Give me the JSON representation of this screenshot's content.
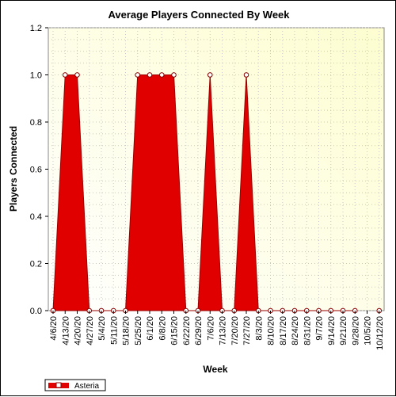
{
  "chart_data": {
    "type": "area",
    "title": "Average Players Connected By Week",
    "xlabel": "Week",
    "ylabel": "Players Connected",
    "ylim": [
      0,
      1.2
    ],
    "yticks": [
      "0.0",
      "0.2",
      "0.4",
      "0.6",
      "0.8",
      "1.0",
      "1.2"
    ],
    "categories": [
      "4/6/20",
      "4/13/20",
      "4/20/20",
      "4/27/20",
      "5/4/20",
      "5/11/20",
      "5/18/20",
      "5/25/20",
      "6/1/20",
      "6/8/20",
      "6/15/20",
      "6/22/20",
      "6/29/20",
      "7/6/20",
      "7/13/20",
      "7/20/20",
      "7/27/20",
      "8/3/20",
      "8/10/20",
      "8/17/20",
      "8/24/20",
      "8/31/20",
      "9/7/20",
      "9/14/20",
      "9/21/20",
      "9/28/20",
      "10/5/20",
      "10/12/20"
    ],
    "series": [
      {
        "name": "Asteria",
        "color": "#e00000",
        "values": [
          0,
          1,
          1,
          0,
          0,
          0,
          0,
          1,
          1,
          1,
          1,
          0,
          0,
          1,
          0,
          0,
          1,
          0,
          0,
          0,
          0,
          0,
          0,
          0,
          0,
          0,
          null,
          0
        ]
      }
    ],
    "grid": true,
    "legend": "bottom-left"
  }
}
